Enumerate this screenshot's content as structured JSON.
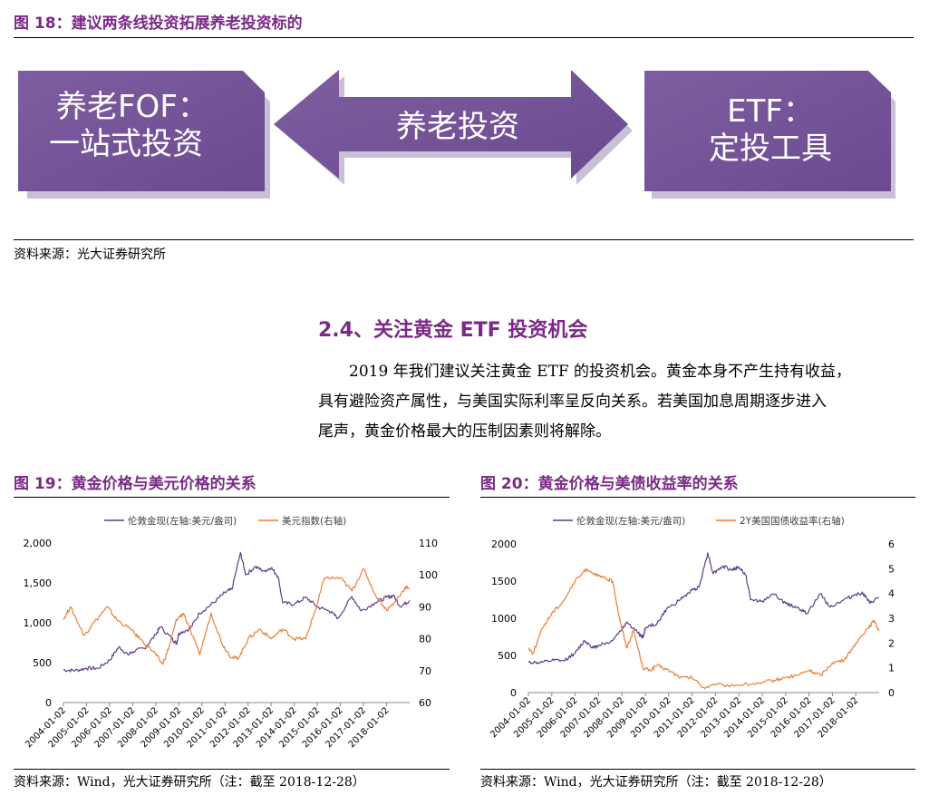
{
  "fig18": {
    "title": "图 18：建议两条线投资拓展养老投资标的",
    "left_box": {
      "line1": "养老FOF：",
      "line2": "一站式投资"
    },
    "center_arrow": "养老投资",
    "right_box": {
      "line1": "ETF：",
      "line2": "定投工具"
    },
    "source": "资料来源：光大证券研究所"
  },
  "section": {
    "heading": "2.4、关注黄金 ETF 投资机会",
    "paragraph": [
      "2019 年我们建议关注黄金 ETF 的投资机会。黄金本身不产生持有收益，",
      "具有避险资产属性，与美国实际利率呈反向关系。若美国加息周期逐步进入",
      "尾声，黄金价格最大的压制因素则将解除。"
    ]
  },
  "colors": {
    "accent": "#7a2a86",
    "purple_series": "#5b3e8c",
    "orange_series": "#ed7d31",
    "box_fill": "#7e5da0"
  },
  "chart_data": [
    {
      "type": "line",
      "title": "图 19：黄金价格与美元价格的关系",
      "source": "资料来源：Wind，光大证券研究所（注：截至 2018-12-28）",
      "legend_position": "top",
      "grid": false,
      "x_ticks": [
        "2004-01-02",
        "2005-01-02",
        "2006-01-02",
        "2007-01-02",
        "2008-01-02",
        "2009-01-02",
        "2010-01-02",
        "2011-01-02",
        "2012-01-02",
        "2013-01-02",
        "2014-01-02",
        "2015-01-02",
        "2016-01-02",
        "2017-01-02",
        "2018-01-02"
      ],
      "y_left": {
        "range": [
          0,
          2000
        ],
        "ticks": [
          "0",
          "500",
          "1,000",
          "1,500",
          "2,000"
        ]
      },
      "y_right": {
        "range": [
          60,
          110
        ],
        "ticks": [
          "60",
          "70",
          "80",
          "90",
          "100",
          "110"
        ]
      },
      "series": [
        {
          "name": "伦敦金现(左轴:美元/盎司)",
          "axis": "left",
          "color": "#5b3e8c",
          "x": [
            2004.0,
            2004.5,
            2005.0,
            2005.5,
            2006.0,
            2006.4,
            2006.8,
            2007.0,
            2007.5,
            2008.0,
            2008.2,
            2008.7,
            2008.9,
            2009.0,
            2009.5,
            2009.9,
            2010.5,
            2011.0,
            2011.3,
            2011.67,
            2011.9,
            2012.3,
            2012.7,
            2013.0,
            2013.3,
            2013.5,
            2014.0,
            2014.5,
            2015.0,
            2015.5,
            2015.9,
            2016.5,
            2016.9,
            2017.5,
            2018.0,
            2018.3,
            2018.6,
            2018.99
          ],
          "y": [
            410,
            400,
            430,
            430,
            530,
            700,
            600,
            640,
            680,
            850,
            950,
            800,
            740,
            870,
            930,
            1120,
            1250,
            1380,
            1420,
            1880,
            1600,
            1700,
            1650,
            1690,
            1580,
            1250,
            1230,
            1320,
            1200,
            1150,
            1060,
            1330,
            1150,
            1250,
            1320,
            1340,
            1200,
            1280
          ]
        },
        {
          "name": "美元指数(右轴)",
          "axis": "right",
          "color": "#ed7d31",
          "x": [
            2004.0,
            2004.3,
            2004.9,
            2005.2,
            2005.9,
            2006.3,
            2006.9,
            2007.3,
            2007.9,
            2008.3,
            2008.6,
            2008.9,
            2009.2,
            2009.9,
            2010.4,
            2010.9,
            2011.3,
            2011.6,
            2012.0,
            2012.5,
            2013.0,
            2013.5,
            2014.0,
            2014.5,
            2015.0,
            2015.3,
            2016.0,
            2016.5,
            2017.0,
            2017.5,
            2018.0,
            2018.3,
            2018.8,
            2018.99
          ],
          "y": [
            86,
            90,
            81,
            84,
            90,
            86,
            83,
            80,
            76,
            72,
            78,
            86,
            88,
            75,
            88,
            78,
            74,
            74,
            80,
            83,
            80,
            83,
            80,
            80,
            91,
            99,
            99,
            95,
            102,
            94,
            89,
            91,
            96,
            96
          ]
        }
      ]
    },
    {
      "type": "line",
      "title": "图 20：黄金价格与美债收益率的关系",
      "source": "资料来源：Wind，光大证券研究所（注：截至 2018-12-28）",
      "legend_position": "top",
      "grid": false,
      "x_ticks": [
        "2004-01-02",
        "2005-01-02",
        "2006-01-02",
        "2007-01-02",
        "2008-01-02",
        "2009-01-02",
        "2010-01-02",
        "2011-01-02",
        "2012-01-02",
        "2013-01-02",
        "2014-01-02",
        "2015-01-02",
        "2016-01-02",
        "2017-01-02",
        "2018-01-02"
      ],
      "y_left": {
        "range": [
          0,
          2000
        ],
        "ticks": [
          "0",
          "500",
          "1000",
          "1500",
          "2000"
        ]
      },
      "y_right": {
        "range": [
          0,
          6
        ],
        "ticks": [
          "0",
          "1",
          "2",
          "3",
          "4",
          "5",
          "6"
        ]
      },
      "series": [
        {
          "name": "伦敦金现(左轴:美元/盎司)",
          "axis": "left",
          "color": "#5b3e8c",
          "x": [
            2004.0,
            2004.5,
            2005.0,
            2005.5,
            2006.0,
            2006.4,
            2006.8,
            2007.0,
            2007.5,
            2008.0,
            2008.2,
            2008.7,
            2008.9,
            2009.0,
            2009.5,
            2009.9,
            2010.5,
            2011.0,
            2011.3,
            2011.67,
            2011.9,
            2012.3,
            2012.7,
            2013.0,
            2013.3,
            2013.5,
            2014.0,
            2014.5,
            2015.0,
            2015.5,
            2015.9,
            2016.5,
            2016.9,
            2017.5,
            2018.0,
            2018.3,
            2018.6,
            2018.99
          ],
          "y": [
            410,
            400,
            430,
            430,
            530,
            700,
            600,
            640,
            680,
            850,
            950,
            800,
            740,
            870,
            930,
            1120,
            1250,
            1380,
            1420,
            1880,
            1600,
            1700,
            1650,
            1690,
            1580,
            1250,
            1230,
            1320,
            1200,
            1150,
            1060,
            1330,
            1150,
            1250,
            1320,
            1340,
            1200,
            1280
          ]
        },
        {
          "name": "2Y美国国债收益率(右轴)",
          "axis": "right",
          "color": "#ed7d31",
          "x": [
            2004.0,
            2004.2,
            2004.6,
            2005.0,
            2005.5,
            2006.0,
            2006.5,
            2007.0,
            2007.3,
            2007.6,
            2007.9,
            2008.2,
            2008.5,
            2008.9,
            2009.2,
            2009.5,
            2010.0,
            2010.5,
            2011.0,
            2011.5,
            2012.0,
            2013.0,
            2014.0,
            2014.5,
            2015.0,
            2015.5,
            2016.0,
            2016.5,
            2017.0,
            2017.5,
            2018.0,
            2018.5,
            2018.8,
            2018.99
          ],
          "y": [
            1.8,
            1.6,
            2.6,
            3.2,
            3.7,
            4.5,
            5.0,
            4.7,
            4.6,
            4.5,
            3.0,
            1.8,
            2.5,
            1.0,
            0.9,
            1.1,
            0.9,
            0.6,
            0.6,
            0.2,
            0.3,
            0.3,
            0.4,
            0.5,
            0.6,
            0.7,
            0.9,
            0.7,
            1.2,
            1.3,
            2.0,
            2.6,
            2.9,
            2.5
          ]
        }
      ]
    }
  ]
}
